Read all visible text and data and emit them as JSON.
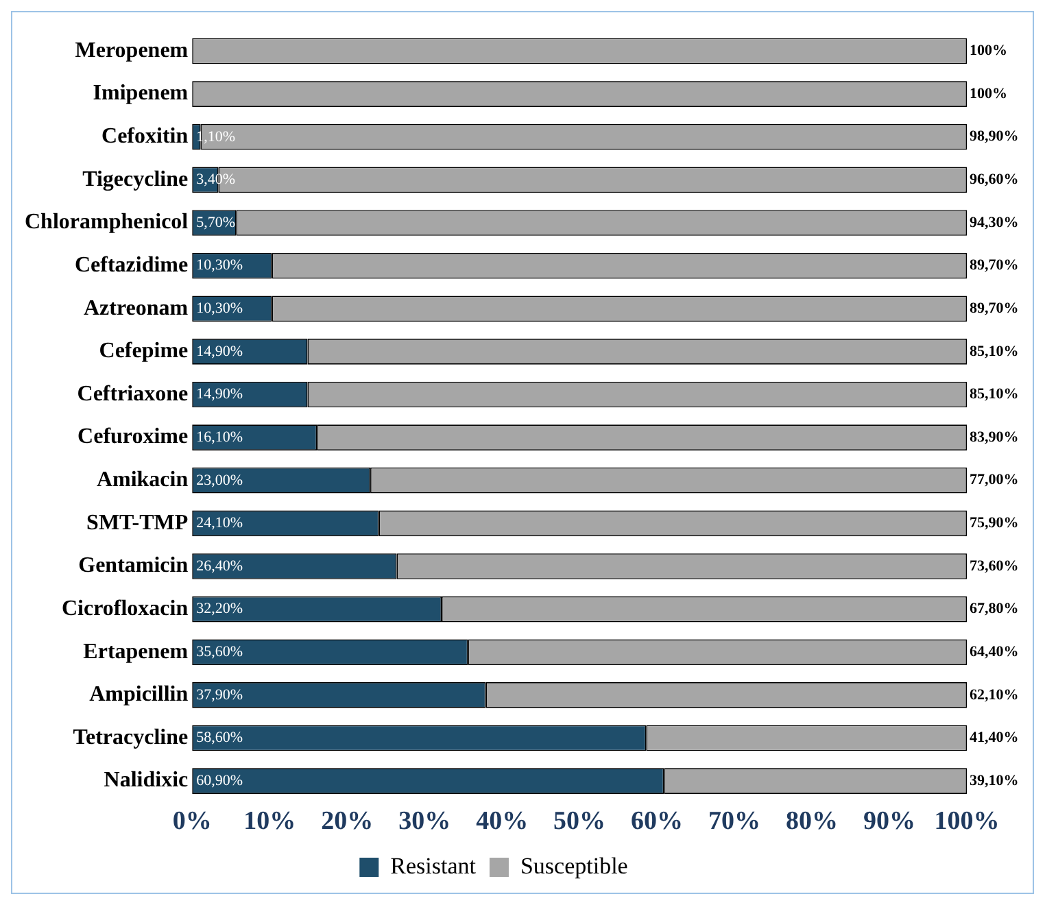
{
  "chart_data": {
    "type": "bar",
    "orientation": "horizontal",
    "stacked": true,
    "categories": [
      "Meropenem",
      "Imipenem",
      "Cefoxitin",
      "Tigecycline",
      "Chloramphenicol",
      "Ceftazidime",
      "Aztreonam",
      "Cefepime",
      "Ceftriaxone",
      "Cefuroxime",
      "Amikacin",
      "SMT-TMP",
      "Gentamicin",
      "Cicrofloxacin",
      "Ertapenem",
      "Ampicillin",
      "Tetracycline",
      "Nalidixic"
    ],
    "series": [
      {
        "name": "Resistant",
        "color": "#1f4e6b",
        "values": [
          0,
          0,
          1.1,
          3.4,
          5.7,
          10.3,
          10.3,
          14.9,
          14.9,
          16.1,
          23,
          24.1,
          26.4,
          32.2,
          35.6,
          37.9,
          58.6,
          60.9
        ],
        "value_labels": [
          null,
          null,
          "1,10%",
          "3,40%",
          "5,70%",
          "10,30%",
          "10,30%",
          "14,90%",
          "14,90%",
          "16,10%",
          "23,00%",
          "24,10%",
          "26,40%",
          "32,20%",
          "35,60%",
          "37,90%",
          "58,60%",
          "60,90%"
        ]
      },
      {
        "name": "Susceptible",
        "color": "#a6a6a6",
        "values": [
          100,
          100,
          98.9,
          96.6,
          94.3,
          89.7,
          89.7,
          85.1,
          85.1,
          83.9,
          77,
          75.9,
          73.6,
          67.8,
          64.4,
          62.1,
          41.4,
          39.1
        ],
        "value_labels": [
          "100%",
          "100%",
          "98,90%",
          "96,60%",
          "94,30%",
          "89,70%",
          "89,70%",
          "85,10%",
          "85,10%",
          "83,90%",
          "77,00%",
          "75,90%",
          "73,60%",
          "67,80%",
          "64,40%",
          "62,10%",
          "41,40%",
          "39,10%"
        ]
      }
    ],
    "xlim": [
      0,
      100
    ],
    "xticks": [
      {
        "value": 0,
        "label": "0%"
      },
      {
        "value": 10,
        "label": "10%"
      },
      {
        "value": 20,
        "label": "20%"
      },
      {
        "value": 30,
        "label": "30%"
      },
      {
        "value": 40,
        "label": "40%"
      },
      {
        "value": 50,
        "label": "50%"
      },
      {
        "value": 60,
        "label": "60%"
      },
      {
        "value": 70,
        "label": "70%"
      },
      {
        "value": 80,
        "label": "80%"
      },
      {
        "value": 90,
        "label": "90%"
      },
      {
        "value": 100,
        "label": "100%"
      }
    ],
    "grid": false,
    "legend": "bottom"
  }
}
